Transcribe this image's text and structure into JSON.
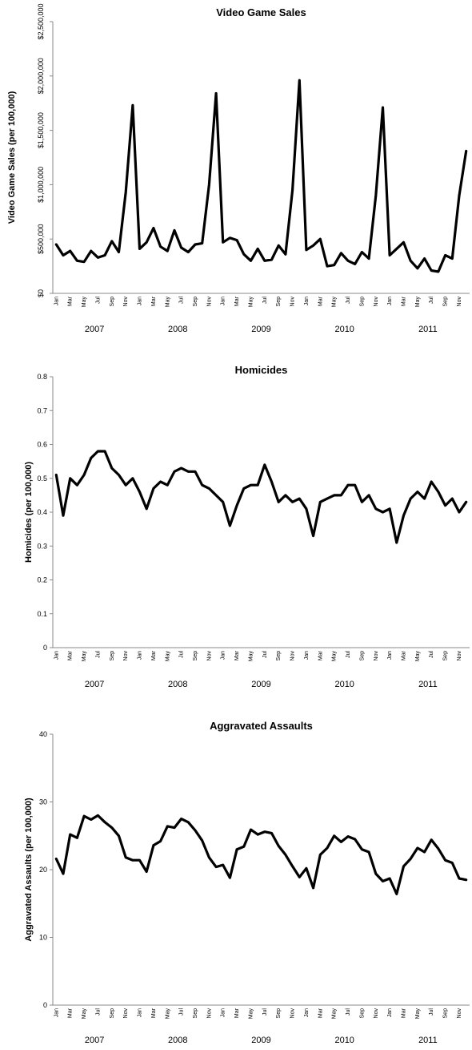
{
  "chart_data": [
    {
      "type": "line",
      "title": "Video Game Sales",
      "ylabel": "Video Game Sales (per 100,000)",
      "ylim": [
        0,
        2500000
      ],
      "yticks": [
        0,
        500000,
        1000000,
        1500000,
        2000000,
        2500000
      ],
      "ytick_labels": [
        "$0",
        "$500,000",
        "$1,000,000",
        "$1,500,000",
        "$2,000,000",
        "$2,500,000"
      ],
      "month_labels": [
        "Jan",
        "Mar",
        "May",
        "Jul",
        "Sep",
        "Nov",
        "Jan",
        "Mar",
        "May",
        "Jul",
        "Sep",
        "Nov",
        "Jan",
        "Mar",
        "May",
        "Jul",
        "Sep",
        "Nov",
        "Jan",
        "Mar",
        "May",
        "Jul",
        "Sep",
        "Nov",
        "Jan",
        "Mar",
        "May",
        "Jul",
        "Sep",
        "Nov"
      ],
      "years": [
        "2007",
        "2008",
        "2009",
        "2010",
        "2011"
      ],
      "grid": false,
      "series": [
        {
          "values": [
            450000,
            350000,
            390000,
            300000,
            290000,
            390000,
            330000,
            350000,
            480000,
            380000,
            930000,
            1730000,
            410000,
            470000,
            600000,
            430000,
            390000,
            580000,
            420000,
            380000,
            450000,
            460000,
            1000000,
            1840000,
            470000,
            510000,
            490000,
            360000,
            300000,
            410000,
            300000,
            310000,
            440000,
            360000,
            950000,
            1960000,
            400000,
            440000,
            500000,
            250000,
            260000,
            370000,
            300000,
            270000,
            380000,
            320000,
            900000,
            1710000,
            350000,
            410000,
            470000,
            300000,
            230000,
            320000,
            210000,
            200000,
            350000,
            320000,
            900000,
            1310000
          ]
        }
      ]
    },
    {
      "type": "line",
      "title": "Homicides",
      "ylabel": "Homicides (per 100,000)",
      "ylim": [
        0,
        0.8
      ],
      "yticks": [
        0,
        0.1,
        0.2,
        0.3,
        0.4,
        0.5,
        0.6,
        0.7,
        0.8
      ],
      "ytick_labels": [
        "0",
        "0.1",
        "0.2",
        "0.3",
        "0.4",
        "0.5",
        "0.6",
        "0.7",
        "0.8"
      ],
      "month_labels": [
        "Jan",
        "Mar",
        "May",
        "Jul",
        "Sep",
        "Nov",
        "Jan",
        "Mar",
        "May",
        "Jul",
        "Sep",
        "Nov",
        "Jan",
        "Mar",
        "May",
        "Jul",
        "Sep",
        "Nov",
        "Jan",
        "Mar",
        "May",
        "Jul",
        "Sep",
        "Nov",
        "Jan",
        "Mar",
        "May",
        "Jul",
        "Sep",
        "Nov"
      ],
      "years": [
        "2007",
        "2008",
        "2009",
        "2010",
        "2011"
      ],
      "grid": false,
      "series": [
        {
          "values": [
            0.51,
            0.39,
            0.5,
            0.48,
            0.51,
            0.56,
            0.58,
            0.58,
            0.53,
            0.51,
            0.48,
            0.5,
            0.46,
            0.41,
            0.47,
            0.49,
            0.48,
            0.52,
            0.53,
            0.52,
            0.52,
            0.48,
            0.47,
            0.45,
            0.43,
            0.36,
            0.42,
            0.47,
            0.48,
            0.48,
            0.54,
            0.49,
            0.43,
            0.45,
            0.43,
            0.44,
            0.41,
            0.33,
            0.43,
            0.44,
            0.45,
            0.45,
            0.48,
            0.48,
            0.43,
            0.45,
            0.41,
            0.4,
            0.41,
            0.31,
            0.39,
            0.44,
            0.46,
            0.44,
            0.49,
            0.46,
            0.42,
            0.44,
            0.4,
            0.43
          ]
        }
      ]
    },
    {
      "type": "line",
      "title": "Aggravated Assaults",
      "ylabel": "Aggravated Assaults (per 100,000)",
      "ylim": [
        0,
        40
      ],
      "yticks": [
        0,
        10,
        20,
        30,
        40
      ],
      "ytick_labels": [
        "0",
        "10",
        "20",
        "30",
        "40"
      ],
      "month_labels": [
        "Jan",
        "Mar",
        "May",
        "Jul",
        "Sep",
        "Nov",
        "Jan",
        "Mar",
        "May",
        "Jul",
        "Sep",
        "Nov",
        "Jan",
        "Mar",
        "May",
        "Jul",
        "Sep",
        "Nov",
        "Jan",
        "Mar",
        "May",
        "Jul",
        "Sep",
        "Nov",
        "Jan",
        "Mar",
        "May",
        "Jul",
        "Sep",
        "Nov"
      ],
      "years": [
        "2007",
        "2008",
        "2009",
        "2010",
        "2011"
      ],
      "grid": false,
      "series": [
        {
          "values": [
            21.6,
            19.4,
            25.2,
            24.7,
            27.9,
            27.4,
            28.0,
            27.0,
            26.2,
            25.0,
            21.8,
            21.4,
            21.4,
            19.7,
            23.6,
            24.2,
            26.4,
            26.2,
            27.5,
            27.0,
            25.8,
            24.3,
            21.8,
            20.4,
            20.7,
            18.8,
            23.0,
            23.4,
            25.9,
            25.2,
            25.6,
            25.4,
            23.5,
            22.2,
            20.5,
            18.9,
            20.2,
            17.3,
            22.2,
            23.2,
            25.0,
            24.1,
            24.9,
            24.5,
            23.0,
            22.6,
            19.4,
            18.3,
            18.7,
            16.4,
            20.5,
            21.6,
            23.2,
            22.6,
            24.4,
            23.1,
            21.4,
            21.0,
            18.7,
            18.5
          ]
        }
      ]
    }
  ]
}
